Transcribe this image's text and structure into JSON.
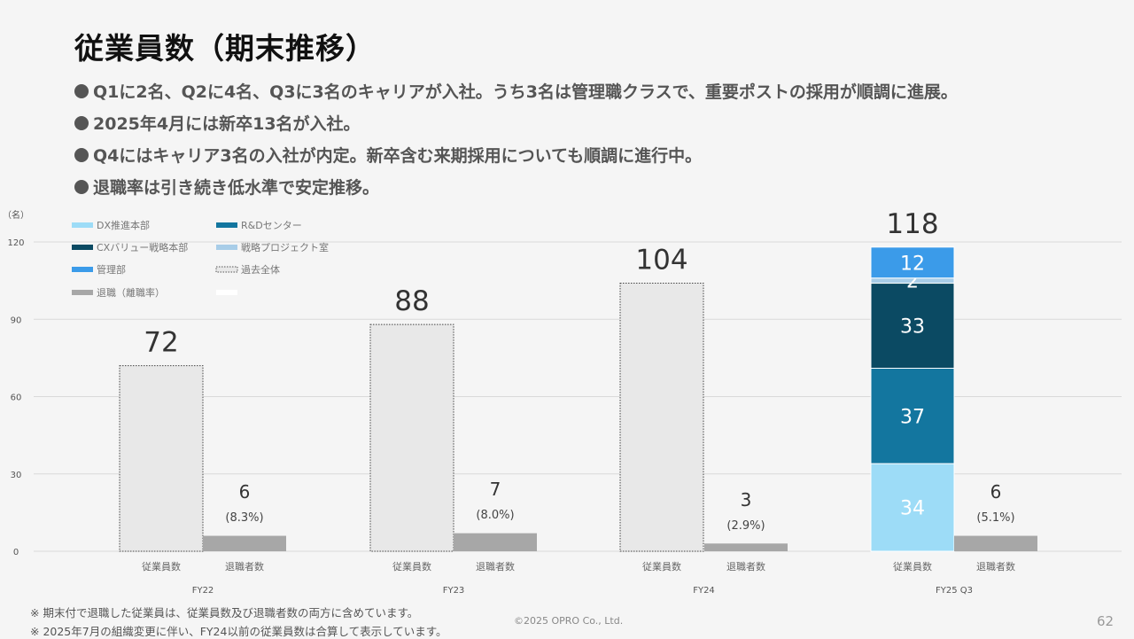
{
  "slide": {
    "title": "従業員数（期末推移）",
    "bullets": [
      "Q1に2名、Q2に4名、Q3に3名のキャリアが入社。うち3名は管理職クラスで、重要ポストの採用が順調に進展。",
      "2025年4月には新卒13名が入社。",
      "Q4にはキャリア3名の入社が内定。新卒含む来期採用についても順調に進行中。",
      "退職率は引き続き低水準で安定推移。"
    ],
    "footnotes": [
      "※ 期末付で退職した従業員は、従業員数及び退職者数の両方に含めています。",
      "※ 2025年7月の組織変更に伴い、FY24以前の従業員数は合算して表示しています。"
    ],
    "copyright": "©2025 OPRO Co., Ltd.",
    "page_number": "62"
  },
  "chart_data": {
    "type": "bar",
    "y_unit_label": "（名）",
    "ylim": [
      0,
      120
    ],
    "yticks": [
      "0",
      "30",
      "60",
      "90",
      "120"
    ],
    "grid": true,
    "legend_position": "top-left",
    "categories": [
      "FY22",
      "FY23",
      "FY24",
      "FY25 Q3"
    ],
    "bar_labels": [
      "従業員数",
      "退職者数"
    ],
    "legend": [
      {
        "name": "DX推進本部",
        "color": "#9ddcf7"
      },
      {
        "name": "R&Dセンター",
        "color": "#13769f"
      },
      {
        "name": "CXバリュー戦略本部",
        "color": "#0b4a63"
      },
      {
        "name": "戦略プロジェクト室",
        "color": "#a8cde8"
      },
      {
        "name": "管理部",
        "color": "#3b9be9"
      },
      {
        "name": "過去全体",
        "color": "#e8e8e8"
      },
      {
        "name": "退職（離職率）",
        "color": "#a7a7a7"
      },
      {
        "name": "",
        "color": "#ffffff"
      }
    ],
    "past_total": [
      72,
      88,
      104,
      null
    ],
    "fy25_stack": [
      {
        "name": "DX推進本部",
        "value": 34
      },
      {
        "name": "R&Dセンター",
        "value": 37
      },
      {
        "name": "CXバリュー戦略本部",
        "value": 33
      },
      {
        "name": "戦略プロジェクト室",
        "value": 2
      },
      {
        "name": "管理部",
        "value": 12
      }
    ],
    "employee_totals": [
      "72",
      "88",
      "104",
      "118"
    ],
    "retirees": [
      6,
      7,
      3,
      6
    ],
    "retiree_labels": [
      "6",
      "7",
      "3",
      "6"
    ],
    "retirement_rates": [
      "(8.3%)",
      "(8.0%)",
      "(2.9%)",
      "(5.1%)"
    ]
  }
}
